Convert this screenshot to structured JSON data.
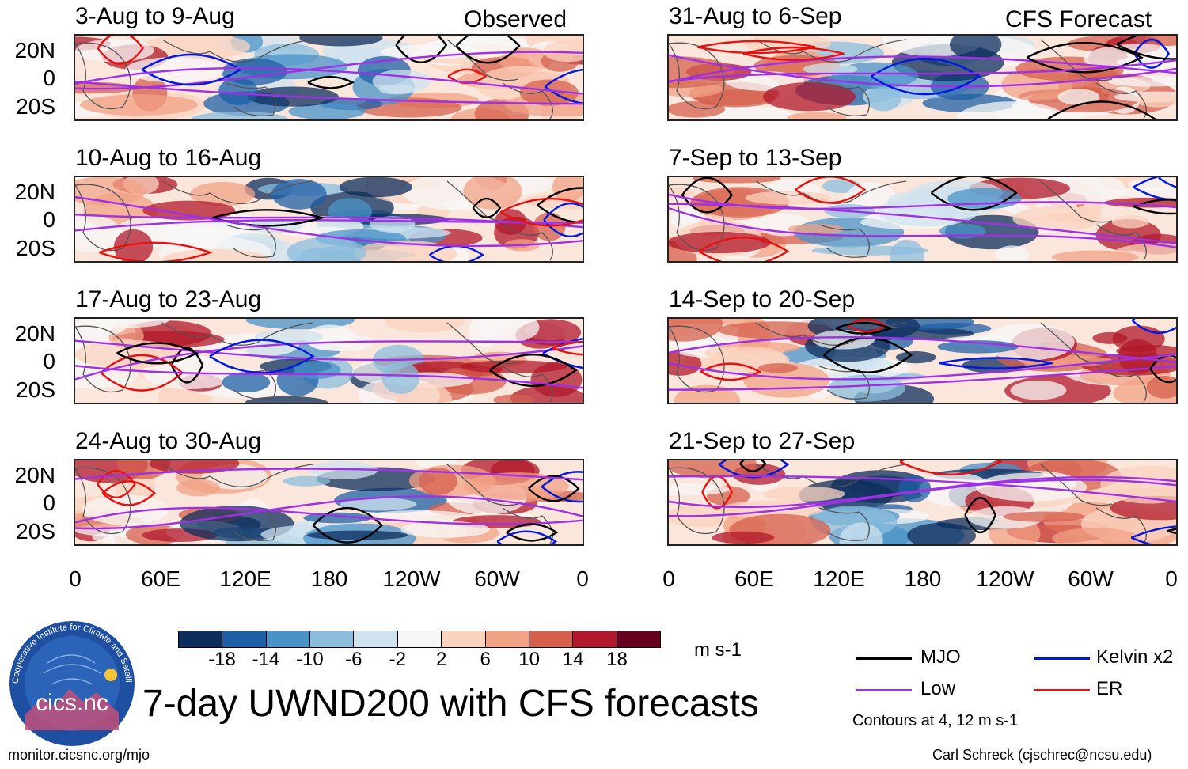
{
  "observed_label": "Observed",
  "forecast_label": "CFS Forecast",
  "panels_left": [
    {
      "title": "3-Aug to 9-Aug"
    },
    {
      "title": "10-Aug to 16-Aug"
    },
    {
      "title": "17-Aug to 23-Aug"
    },
    {
      "title": "24-Aug to 30-Aug"
    }
  ],
  "panels_right": [
    {
      "title": "31-Aug to 6-Sep"
    },
    {
      "title": "7-Sep to 13-Sep"
    },
    {
      "title": "14-Sep to 20-Sep"
    },
    {
      "title": "21-Sep to 27-Sep"
    }
  ],
  "lat_labels": [
    "20N",
    "0",
    "20S"
  ],
  "lon_labels": [
    "0",
    "60E",
    "120E",
    "180",
    "120W",
    "60W",
    "0"
  ],
  "colorbar": {
    "ticks": [
      "-18",
      "-14",
      "-10",
      "-6",
      "-2",
      "2",
      "6",
      "10",
      "14",
      "18"
    ],
    "colors": [
      "#0d2d5c",
      "#1f5fa6",
      "#4a93c8",
      "#8cbddd",
      "#cfe3ef",
      "#f7f7f7",
      "#fbd3bf",
      "#f2a285",
      "#d6604d",
      "#b2182b",
      "#67001f"
    ],
    "units": "m s-1"
  },
  "main_title": "7-day UWND200 with CFS forecasts",
  "legend": {
    "items": [
      {
        "label": "MJO",
        "color": "#000000"
      },
      {
        "label": "Kelvin x2",
        "color": "#0018e0"
      },
      {
        "label": "Low",
        "color": "#a030e8"
      },
      {
        "label": "ER",
        "color": "#e81010"
      }
    ],
    "note": "Contours at 4, 12 m s-1"
  },
  "logo": {
    "text": "cics.nc",
    "ring_text": "Cooperative Institute for Climate and Satellites"
  },
  "footer_left": "monitor.cicsnc.org/mjo",
  "footer_right": "Carl Schreck (cjschrec@ncsu.edu)"
}
